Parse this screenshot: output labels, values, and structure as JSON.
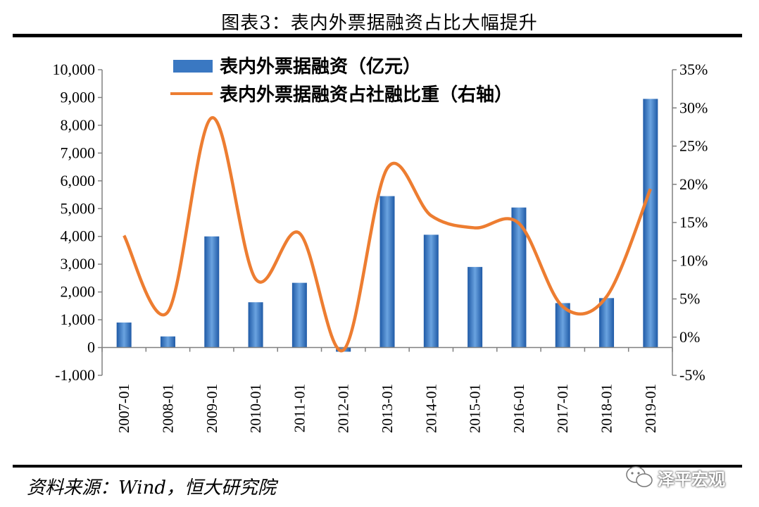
{
  "title": "图表3：表内外票据融资占比大幅提升",
  "source": "资料来源：Wind，恒大研究院",
  "watermark": {
    "text": "泽平宏观",
    "icon": "wechat-icon"
  },
  "colors": {
    "bar": "#3a78c2",
    "line": "#ed7d31",
    "axis": "#808080"
  },
  "chart_data": {
    "type": "bar+line",
    "categories": [
      "2007-01",
      "2008-01",
      "2009-01",
      "2010-01",
      "2011-01",
      "2012-01",
      "2013-01",
      "2014-01",
      "2015-01",
      "2016-01",
      "2017-01",
      "2018-01",
      "2019-01"
    ],
    "series": [
      {
        "name": "表内外票据融资（亿元）",
        "type": "bar",
        "axis": "left",
        "values": [
          900,
          400,
          4000,
          1630,
          2330,
          -150,
          5450,
          4060,
          2900,
          5040,
          1600,
          1780,
          8950
        ]
      },
      {
        "name": "表内外票据融资占社融比重（右轴）",
        "type": "line",
        "axis": "right",
        "smooth": true,
        "values": [
          13.3,
          3.3,
          28.7,
          7.6,
          13.6,
          -1.7,
          22.1,
          15.9,
          14.3,
          14.9,
          4.0,
          5.3,
          19.4
        ]
      }
    ],
    "y_left": {
      "min": -1000,
      "max": 10000,
      "ticks": [
        "-1,000",
        "0",
        "1,000",
        "2,000",
        "3,000",
        "4,000",
        "5,000",
        "6,000",
        "7,000",
        "8,000",
        "9,000",
        "10,000"
      ]
    },
    "y_right": {
      "min": -5,
      "max": 35,
      "ticks": [
        "-5%",
        "0%",
        "5%",
        "10%",
        "15%",
        "20%",
        "25%",
        "30%",
        "35%"
      ]
    },
    "legend_position": "top-left"
  }
}
